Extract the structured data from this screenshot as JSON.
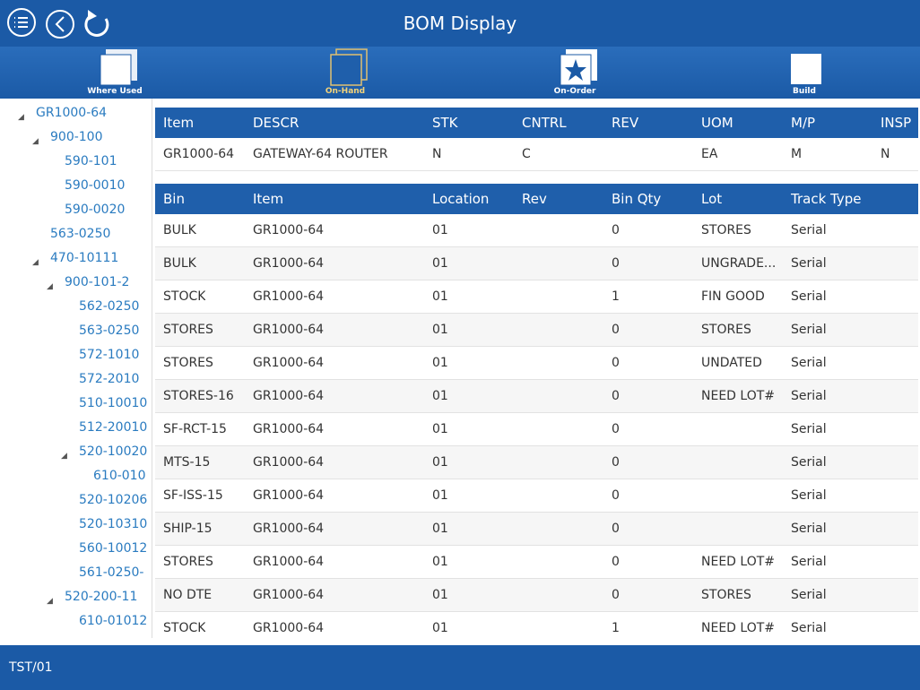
{
  "header": {
    "title": "BOM Display"
  },
  "toolbar": [
    "Where Used",
    "On-Hand",
    "On-Order",
    "Build"
  ],
  "tree": {
    "label": "GR1000-64",
    "children": [
      {
        "label": "900-100",
        "children": [
          {
            "label": "590-101"
          },
          {
            "label": "590-0010"
          },
          {
            "label": "590-0020"
          }
        ]
      },
      {
        "label": "563-0250"
      },
      {
        "label": "470-10111",
        "children": [
          {
            "label": "900-101-2",
            "children": [
              {
                "label": "562-0250"
              },
              {
                "label": "563-0250"
              },
              {
                "label": "572-1010"
              },
              {
                "label": "572-2010"
              },
              {
                "label": "510-10010"
              },
              {
                "label": "512-20010"
              },
              {
                "label": "520-10020",
                "children": [
                  {
                    "label": "610-010"
                  }
                ]
              },
              {
                "label": "520-10206"
              },
              {
                "label": "520-10310"
              },
              {
                "label": "560-10012"
              },
              {
                "label": "561-0250-"
              }
            ]
          },
          {
            "label": "520-200-11",
            "children": [
              {
                "label": "610-01012"
              }
            ]
          }
        ]
      }
    ]
  },
  "item_table": {
    "headers": [
      "Item",
      "DESCR",
      "STK",
      "CNTRL",
      "REV",
      "UOM",
      "M/P",
      "INSP"
    ],
    "rows": [
      [
        "GR1000-64",
        "GATEWAY-64 ROUTER",
        "N",
        "C",
        null,
        "EA",
        "M",
        "N"
      ]
    ]
  },
  "bin_table": {
    "headers": [
      "Bin",
      "Item",
      "Location",
      "Rev",
      "Bin Qty",
      "Lot",
      "Track Type"
    ],
    "rows": [
      [
        "BULK",
        "GR1000-64",
        "01",
        null,
        "0",
        "STORES",
        "Serial"
      ],
      [
        "BULK",
        "GR1000-64",
        "01",
        null,
        "0",
        "UNGRADE...",
        "Serial"
      ],
      [
        "STOCK",
        "GR1000-64",
        "01",
        null,
        "1",
        "FIN GOOD",
        "Serial"
      ],
      [
        "STORES",
        "GR1000-64",
        "01",
        null,
        "0",
        "STORES",
        "Serial"
      ],
      [
        "STORES",
        "GR1000-64",
        "01",
        null,
        "0",
        "UNDATED",
        "Serial"
      ],
      [
        "STORES-16",
        "GR1000-64",
        "01",
        null,
        "0",
        "NEED LOT#",
        "Serial"
      ],
      [
        "SF-RCT-15",
        "GR1000-64",
        "01",
        null,
        "0",
        null,
        "Serial"
      ],
      [
        "MTS-15",
        "GR1000-64",
        "01",
        null,
        "0",
        null,
        "Serial"
      ],
      [
        "SF-ISS-15",
        "GR1000-64",
        "01",
        null,
        "0",
        null,
        "Serial"
      ],
      [
        "SHIP-15",
        "GR1000-64",
        "01",
        null,
        "0",
        null,
        "Serial"
      ],
      [
        "STORES",
        "GR1000-64",
        "01",
        null,
        "0",
        "NEED LOT#",
        "Serial"
      ],
      [
        "NO DTE",
        "GR1000-64",
        "01",
        null,
        "0",
        "STORES",
        "Serial"
      ],
      [
        "STOCK",
        "GR1000-64",
        "01",
        null,
        "1",
        "NEED LOT#",
        "Serial"
      ]
    ]
  },
  "footer": {
    "text": "TST/01"
  }
}
